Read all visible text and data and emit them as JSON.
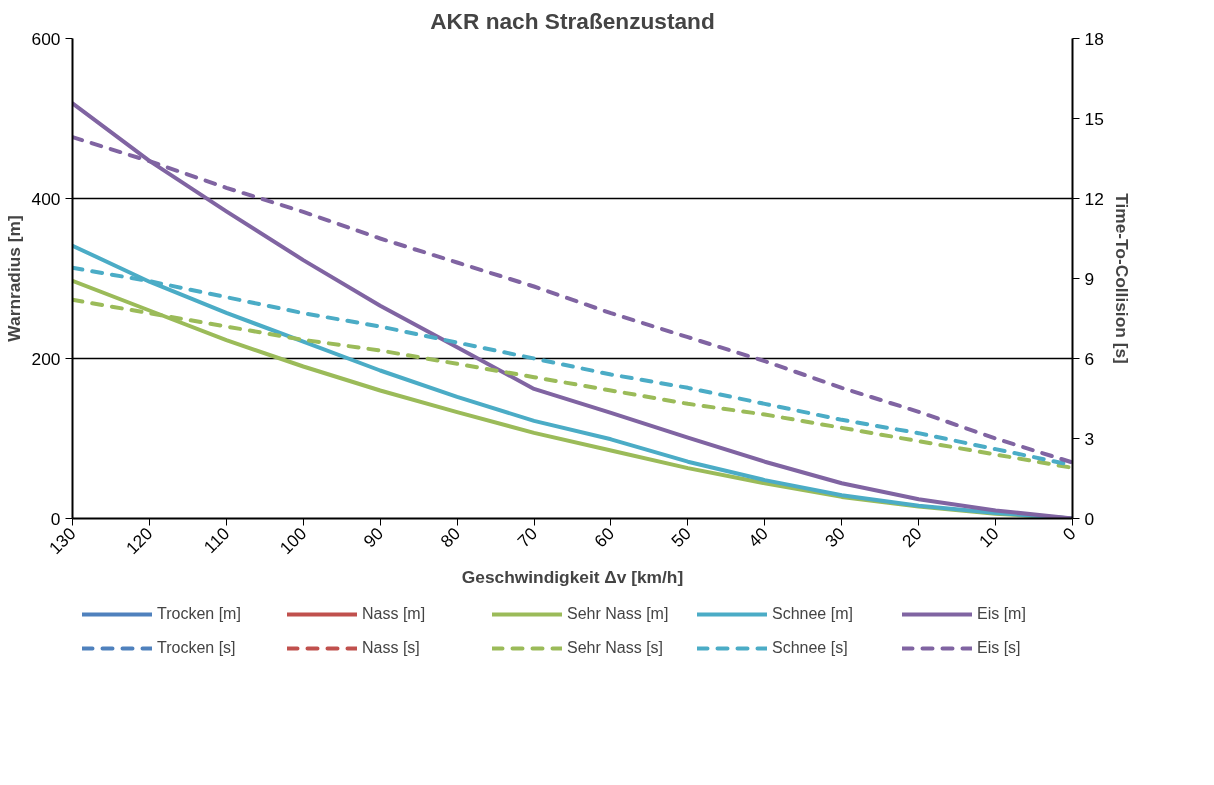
{
  "chart_data": {
    "type": "line",
    "title": "AKR nach Straßenzustand",
    "xlabel": "Geschwindigkeit Δv [km/h]",
    "ylabel": "Warnradius [m]",
    "y2label": "Time-To-Collision [s]",
    "x": [
      130,
      120,
      110,
      100,
      90,
      80,
      70,
      60,
      50,
      40,
      30,
      20,
      10,
      0
    ],
    "xlim": [
      130,
      0
    ],
    "xticks": [
      130,
      120,
      110,
      100,
      90,
      80,
      70,
      60,
      50,
      40,
      30,
      20,
      10,
      0
    ],
    "ylim": [
      0,
      600
    ],
    "yticks": [
      0,
      200,
      400,
      600
    ],
    "y2lim": [
      0,
      18
    ],
    "y2ticks": [
      0,
      3,
      6,
      9,
      12,
      15,
      18
    ],
    "grid": "y",
    "legend": "bottom",
    "marker": "none",
    "series": [
      {
        "name": "Trocken [m]",
        "color": "#4f81bd",
        "line_style": "solid",
        "values": [
          null,
          null,
          null,
          null,
          null,
          null,
          null,
          null,
          null,
          null,
          null,
          null,
          null,
          null
        ]
      },
      {
        "name": "Nass [m]",
        "color": "#c0504d",
        "line_style": "solid",
        "values": [
          null,
          null,
          null,
          null,
          null,
          null,
          null,
          null,
          null,
          null,
          null,
          null,
          null,
          null
        ]
      },
      {
        "name": "Sehr Nass [m]",
        "color": "#9bbb59",
        "line_style": "solid",
        "values": [
          297,
          260,
          223,
          190,
          160,
          133,
          107,
          85,
          63,
          44,
          27,
          15,
          6,
          0
        ]
      },
      {
        "name": "Schnee [m]",
        "color": "#4bacc6",
        "line_style": "solid",
        "values": [
          341,
          296,
          257,
          221,
          185,
          152,
          122,
          99,
          71,
          48,
          29,
          16,
          7,
          0
        ]
      },
      {
        "name": "Eis [m]",
        "color": "#8064a2",
        "line_style": "solid",
        "values": [
          519,
          447,
          384,
          323,
          266,
          214,
          162,
          132,
          101,
          71,
          44,
          24,
          10,
          0
        ]
      },
      {
        "name": "Trocken [s]",
        "color": "#4f81bd",
        "line_style": "dashed",
        "axis": "y2",
        "values": [
          null,
          null,
          null,
          null,
          null,
          null,
          null,
          null,
          null,
          null,
          null,
          null,
          null,
          null
        ]
      },
      {
        "name": "Nass [s]",
        "color": "#c0504d",
        "line_style": "dashed",
        "axis": "y2",
        "values": [
          null,
          null,
          null,
          null,
          null,
          null,
          null,
          null,
          null,
          null,
          null,
          null,
          null,
          null
        ]
      },
      {
        "name": "Sehr Nass [s]",
        "color": "#9bbb59",
        "line_style": "dashed",
        "axis": "y2",
        "values": [
          8.2,
          7.7,
          7.2,
          6.7,
          6.3,
          5.8,
          5.3,
          4.8,
          4.3,
          3.9,
          3.4,
          2.9,
          2.4,
          1.9
        ]
      },
      {
        "name": "Schnee [s]",
        "color": "#4bacc6",
        "line_style": "dashed",
        "axis": "y2",
        "values": [
          9.4,
          8.9,
          8.3,
          7.7,
          7.2,
          6.6,
          6.0,
          5.4,
          4.9,
          4.3,
          3.7,
          3.2,
          2.6,
          2.0
        ]
      },
      {
        "name": "Eis [s]",
        "color": "#8064a2",
        "line_style": "dashed",
        "axis": "y2",
        "values": [
          14.3,
          13.4,
          12.4,
          11.5,
          10.5,
          9.6,
          8.7,
          7.7,
          6.8,
          5.9,
          4.9,
          4.0,
          3.0,
          2.1
        ]
      }
    ]
  }
}
